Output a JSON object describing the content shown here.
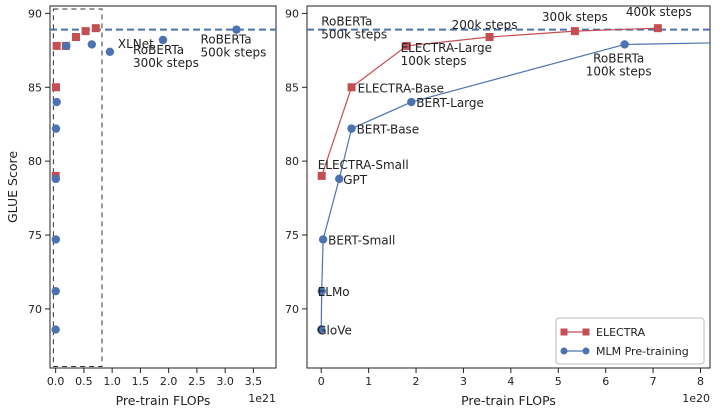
{
  "chart_data": [
    {
      "type": "scatter",
      "xlabel": "Pre-train FLOPs",
      "ylabel": "GLUE Score",
      "x_offset_label": "1e21",
      "xlim": [
        -0.1,
        3.9
      ],
      "ylim": [
        66.0,
        90.5
      ],
      "xticks": [
        "0.0",
        "0.5",
        "1.0",
        "1.5",
        "2.0",
        "2.5",
        "3.0",
        "3.5"
      ],
      "xtick_values": [
        0.0,
        0.5,
        1.0,
        1.5,
        2.0,
        2.5,
        3.0,
        3.5
      ],
      "yticks": [
        "70",
        "75",
        "80",
        "85",
        "90"
      ],
      "ytick_values": [
        70,
        75,
        80,
        85,
        90
      ],
      "reference_line": 88.9,
      "highlight_box": {
        "x": [
          -0.04,
          0.82
        ],
        "y": [
          66.1,
          90.3
        ]
      },
      "series": [
        {
          "name": "ELECTRA",
          "color": "#c44e52",
          "marker": "square",
          "x": [
            0.001,
            0.006,
            0.018,
            0.18,
            0.36,
            0.53,
            0.71
          ],
          "y": [
            79.0,
            85.0,
            87.8,
            87.8,
            88.4,
            88.8,
            89.0
          ]
        },
        {
          "name": "MLM Pre-training",
          "color": "#4c72b0",
          "marker": "circle",
          "x": [
            0.0,
            0.001,
            0.003,
            0.004,
            0.006,
            0.019,
            0.19,
            0.64,
            0.96,
            1.9,
            3.2
          ],
          "y": [
            68.6,
            71.2,
            74.7,
            78.8,
            82.2,
            84.0,
            87.8,
            87.9,
            87.4,
            88.2,
            88.9
          ]
        }
      ],
      "annotations": [
        {
          "text": "XLNet",
          "x": 0.96,
          "y": 87.4
        },
        {
          "text": "RoBERTa\n300k steps",
          "x": 1.9,
          "y": 88.2
        },
        {
          "text": "RoBERTa\n500k steps",
          "x": 3.2,
          "y": 88.9
        }
      ]
    },
    {
      "type": "line",
      "xlabel": "Pre-train FLOPs",
      "x_offset_label": "1e20",
      "xlim": [
        -0.3,
        8.2
      ],
      "ylim": [
        66.0,
        90.5
      ],
      "xticks": [
        "0",
        "1",
        "2",
        "3",
        "4",
        "5",
        "6",
        "7",
        "8"
      ],
      "xtick_values": [
        0,
        1,
        2,
        3,
        4,
        5,
        6,
        7,
        8
      ],
      "yticks": [
        "70",
        "75",
        "80",
        "85",
        "90"
      ],
      "yticks_values": [
        70,
        75,
        80,
        85,
        90
      ],
      "ytick_values": [
        70,
        75,
        80,
        85,
        90
      ],
      "reference_line": 88.9,
      "legend_position": "lower-right",
      "series": [
        {
          "name": "ELECTRA",
          "color": "#c44e52",
          "marker": "square",
          "x": [
            0.01,
            0.64,
            1.8,
            3.55,
            5.35,
            7.1
          ],
          "y": [
            79.0,
            85.0,
            87.8,
            88.4,
            88.8,
            89.0
          ]
        },
        {
          "name": "MLM Pre-training",
          "color": "#4c72b0",
          "marker": "circle",
          "x": [
            0.0,
            0.01,
            0.04,
            0.38,
            0.64,
            1.9,
            6.4,
            8.2
          ],
          "y": [
            68.6,
            71.2,
            74.7,
            78.8,
            82.2,
            84.0,
            87.9,
            88.0
          ],
          "line_only_last_point": true
        }
      ],
      "annotations": [
        {
          "text": "RoBERTa\n500k steps",
          "x": 0.0,
          "y": 88.9,
          "anchor": "start"
        },
        {
          "text": "200k steps",
          "x": 3.55,
          "y": 88.4,
          "anchor": "middle"
        },
        {
          "text": "300k steps",
          "x": 5.35,
          "y": 88.8,
          "anchor": "middle"
        },
        {
          "text": "400k steps",
          "x": 7.1,
          "y": 89.0,
          "anchor": "middle"
        },
        {
          "text": "ELECTRA-Large\n100k steps",
          "x": 1.8,
          "y": 87.8,
          "anchor": "start"
        },
        {
          "text": "RoBERTa\n100k steps",
          "x": 6.4,
          "y": 87.9,
          "anchor": "middle"
        },
        {
          "text": "ELECTRA-Base",
          "x": 0.64,
          "y": 85.0,
          "anchor": "start"
        },
        {
          "text": "BERT-Large",
          "x": 1.9,
          "y": 84.0,
          "anchor": "start"
        },
        {
          "text": "BERT-Base",
          "x": 0.64,
          "y": 82.2,
          "anchor": "start"
        },
        {
          "text": "ELECTRA-Small",
          "x": 0.01,
          "y": 79.0,
          "anchor": "start"
        },
        {
          "text": "GPT",
          "x": 0.38,
          "y": 78.8,
          "anchor": "start"
        },
        {
          "text": "BERT-Small",
          "x": 0.04,
          "y": 74.7,
          "anchor": "start"
        },
        {
          "text": "ELMo",
          "x": 0.01,
          "y": 71.2,
          "anchor": "start"
        },
        {
          "text": "GloVe",
          "x": 0.0,
          "y": 68.6,
          "anchor": "start"
        }
      ]
    }
  ]
}
